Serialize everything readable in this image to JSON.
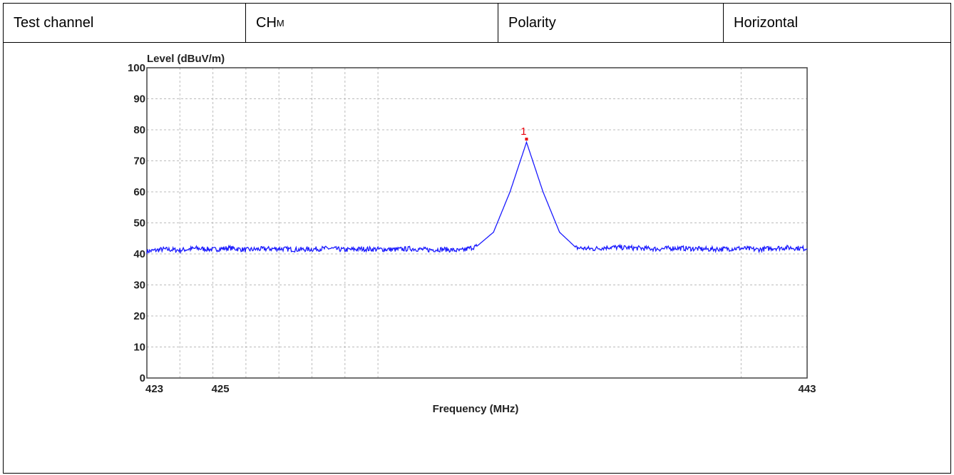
{
  "header": {
    "cells": [
      {
        "label": "Test channel"
      },
      {
        "label": "CH",
        "sub": "M"
      },
      {
        "label": "Polarity"
      },
      {
        "label": "Horizontal"
      }
    ]
  },
  "chart_data": {
    "type": "line",
    "title": "",
    "ylabel": "Level (dBuV/m)",
    "xlabel": "Frequency (MHz)",
    "xlim": [
      423,
      443
    ],
    "ylim": [
      0,
      100
    ],
    "yticks": [
      0,
      10,
      20,
      30,
      40,
      50,
      60,
      70,
      80,
      90,
      100
    ],
    "xtick_labels": [
      {
        "value": 423,
        "label": "423"
      },
      {
        "value": 425,
        "label": "425"
      },
      {
        "value": 443,
        "label": "443"
      }
    ],
    "x_gridlines": [
      424,
      425,
      426,
      427,
      428,
      429,
      430,
      441,
      443
    ],
    "grid": true,
    "series": [
      {
        "color": "#1a1aff",
        "x": [
          423,
          423.5,
          424,
          424.5,
          425,
          425.5,
          426,
          426.5,
          427,
          427.5,
          428,
          428.5,
          429,
          429.5,
          430,
          430.5,
          431,
          431.5,
          432,
          432.5,
          433,
          433.5,
          434,
          434.5,
          435,
          435.5,
          436,
          436.5,
          437,
          437.5,
          438,
          438.5,
          439,
          439.5,
          440,
          440.5,
          441,
          441.5,
          442,
          442.5,
          443
        ],
        "y": [
          40.8,
          41.5,
          41.2,
          41.8,
          41.4,
          41.9,
          41.3,
          41.6,
          41.7,
          41.4,
          41.5,
          41.8,
          41.3,
          41.6,
          41.5,
          41.4,
          41.7,
          41.3,
          41.5,
          41.0,
          42.5,
          47.0,
          60.0,
          76.0,
          60.0,
          47.0,
          42.0,
          41.6,
          42.2,
          42.0,
          41.8,
          41.6,
          41.9,
          41.7,
          41.5,
          41.6,
          41.8,
          41.4,
          41.9,
          42.0,
          41.7
        ]
      }
    ],
    "markers": [
      {
        "label": "1",
        "x": 434.5,
        "y": 77.0,
        "color": "#e8000b"
      }
    ]
  }
}
